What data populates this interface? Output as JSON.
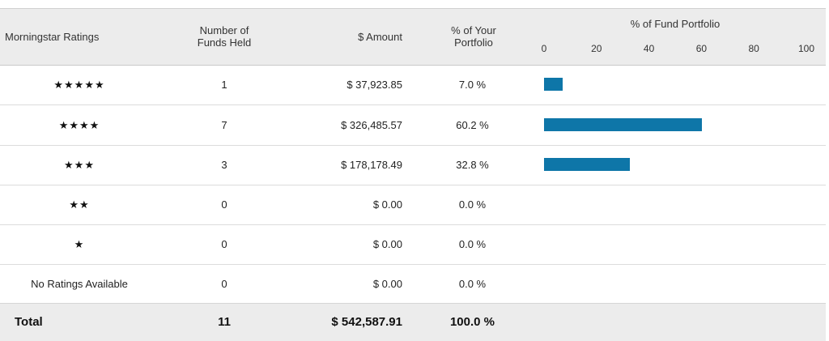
{
  "header": {
    "rating_label": "Morningstar Ratings",
    "funds_label_1": "Number of",
    "funds_label_2": "Funds Held",
    "amount_label": "$ Amount",
    "pct_label_1": "% of Your",
    "pct_label_2": "Portfolio",
    "fund_portfolio_label": "% of Fund Portfolio",
    "axis_ticks": [
      "0",
      "20",
      "40",
      "60",
      "80",
      "100"
    ]
  },
  "rows": [
    {
      "rating": "★★★★★",
      "funds": "1",
      "amount": "$ 37,923.85",
      "pct": "7.0 %",
      "bar_percent": 7.0
    },
    {
      "rating": "★★★★",
      "funds": "7",
      "amount": "$ 326,485.57",
      "pct": "60.2 %",
      "bar_percent": 60.2
    },
    {
      "rating": "★★★",
      "funds": "3",
      "amount": "$ 178,178.49",
      "pct": "32.8 %",
      "bar_percent": 32.8
    },
    {
      "rating": "★★",
      "funds": "0",
      "amount": "$ 0.00",
      "pct": "0.0 %",
      "bar_percent": 0
    },
    {
      "rating": "★",
      "funds": "0",
      "amount": "$ 0.00",
      "pct": "0.0 %",
      "bar_percent": 0
    },
    {
      "rating": "No Ratings Available",
      "funds": "0",
      "amount": "$ 0.00",
      "pct": "0.0 %",
      "bar_percent": 0
    }
  ],
  "total": {
    "label": "Total",
    "funds": "11",
    "amount": "$ 542,587.91",
    "pct": "100.0 %"
  },
  "colors": {
    "bar": "#0e76a8",
    "header_bg": "#ececec"
  }
}
